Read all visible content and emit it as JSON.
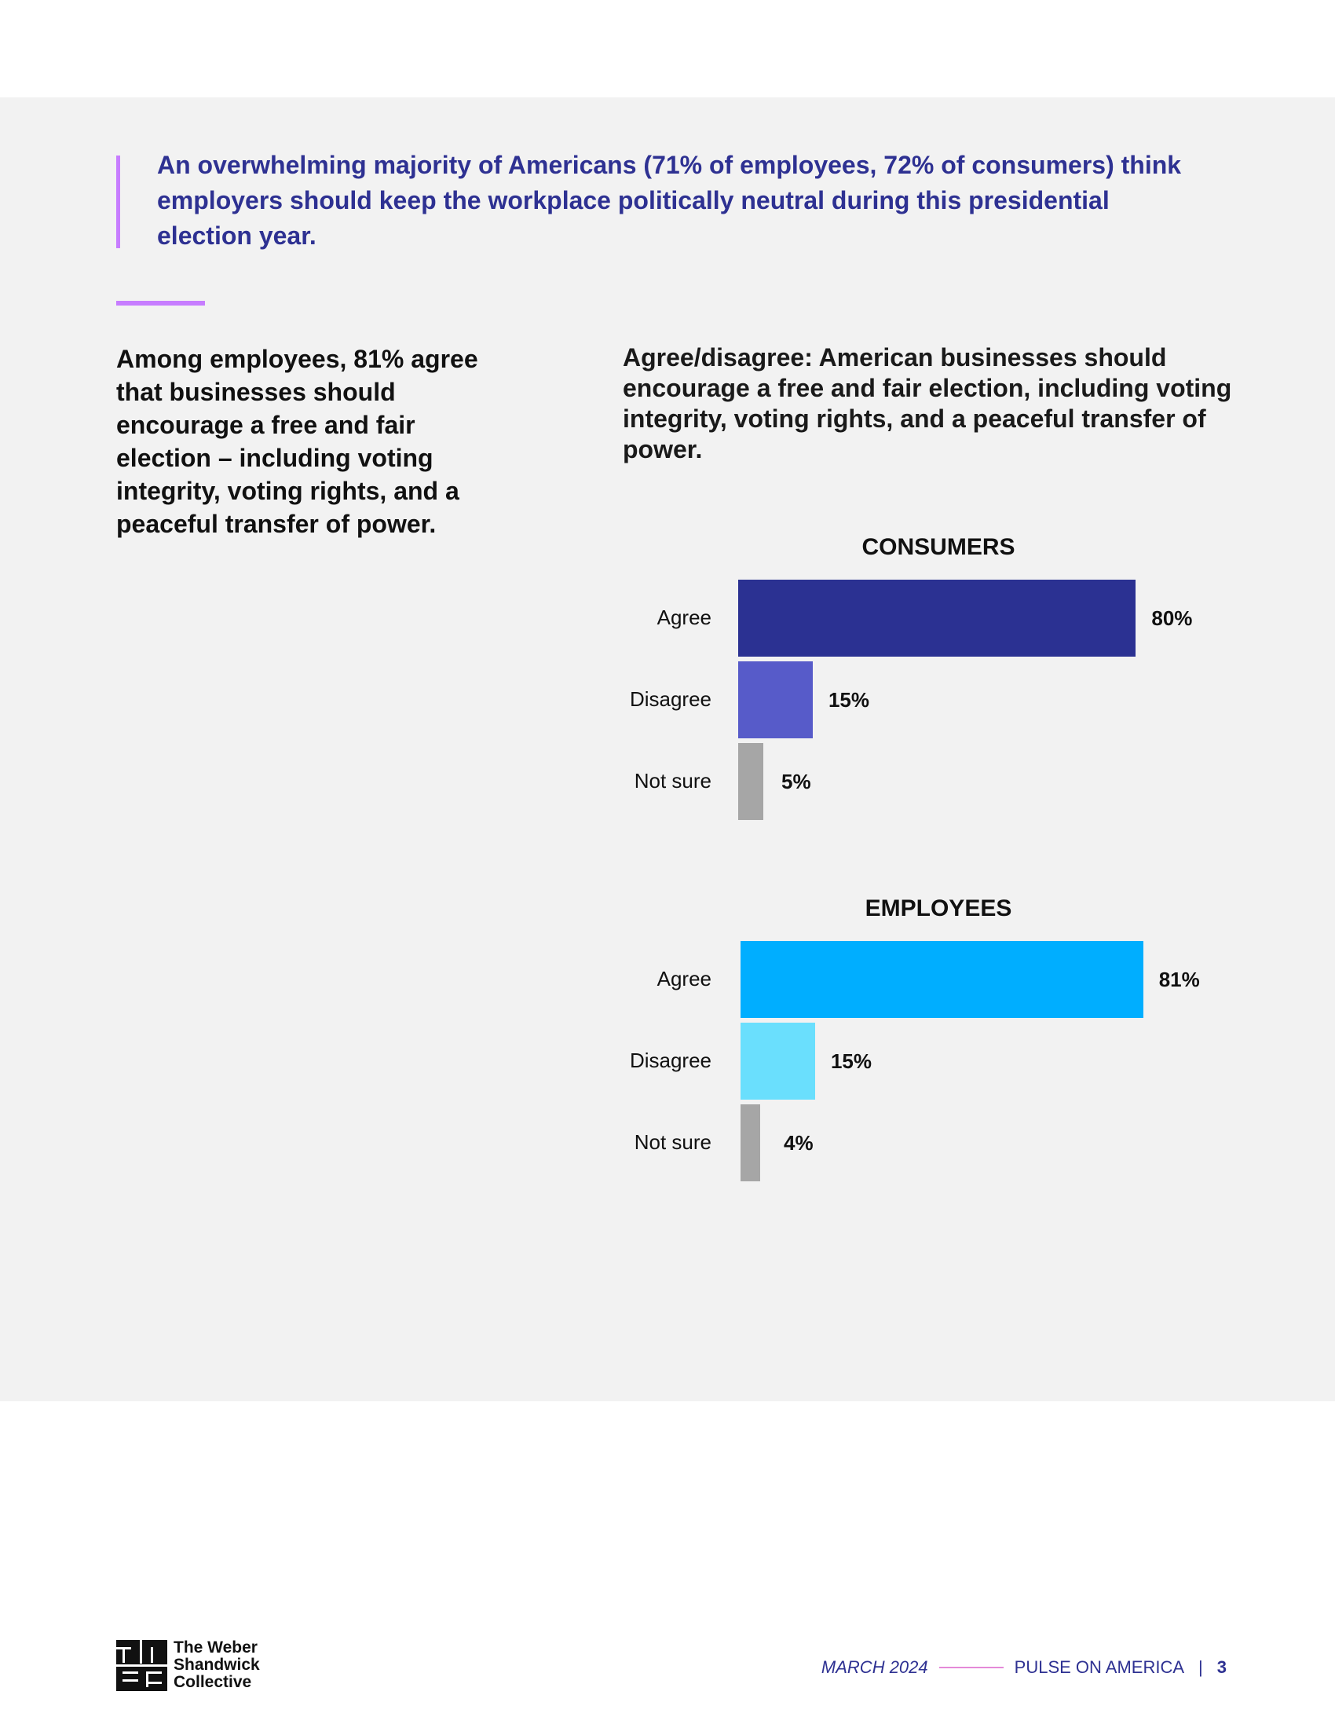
{
  "callout": {
    "text": "An overwhelming majority of Americans (71% of employees, 72% of consumers) think employers should keep the workplace politically neutral during this presidential election year."
  },
  "left_text": "Among employees, 81% agree that businesses should encourage a free and fair election – including voting integrity, voting rights, and a peaceful transfer of power.",
  "chart_question": "Agree/disagree: American businesses should encourage a free and fair election, including voting integrity, voting rights, and a peaceful transfer of power.",
  "chart_data": [
    {
      "type": "bar",
      "orientation": "horizontal",
      "title": "CONSUMERS",
      "categories": [
        "Agree",
        "Disagree",
        "Not sure"
      ],
      "values": [
        80,
        15,
        5
      ],
      "value_labels": [
        "80%",
        "15%",
        "5%"
      ],
      "colors": [
        "#2b3192",
        "#575bc9",
        "#a6a6a6"
      ]
    },
    {
      "type": "bar",
      "orientation": "horizontal",
      "title": "EMPLOYEES",
      "categories": [
        "Agree",
        "Disagree",
        "Not sure"
      ],
      "values": [
        81,
        15,
        4
      ],
      "value_labels": [
        "81%",
        "15%",
        "4%"
      ],
      "colors": [
        "#00aeff",
        "#6adffd",
        "#a6a6a6"
      ]
    }
  ],
  "footer": {
    "logo_icon": "twsc-logo-icon",
    "logo_text": [
      "The Weber",
      "Shandwick",
      "Collective"
    ],
    "date": "MARCH 2024",
    "publication": "PULSE ON AMERICA",
    "separator": "|",
    "page": "3"
  }
}
